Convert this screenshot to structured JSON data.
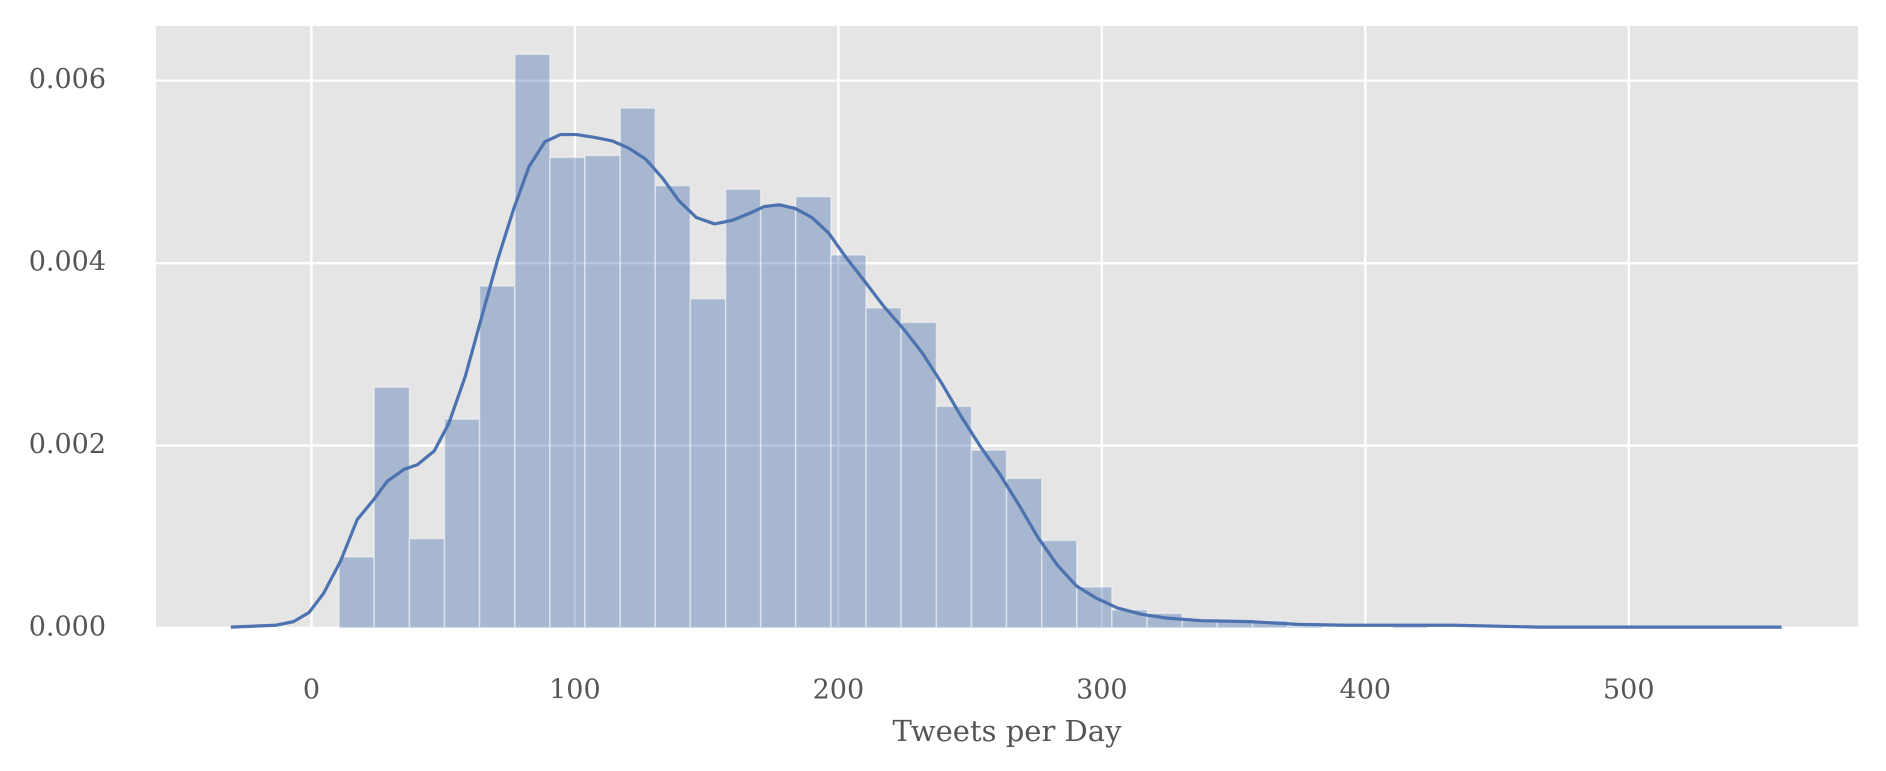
{
  "chart_data": {
    "type": "histogram",
    "xlabel": "Tweets per Day",
    "bins": [
      10.5,
      23.8,
      37.2,
      50.5,
      63.8,
      77.2,
      90.5,
      103.8,
      117.2,
      130.5,
      143.8,
      157.2,
      170.5,
      183.8,
      197.2,
      210.5,
      223.8,
      237.2,
      250.5,
      263.8,
      277.2,
      290.5,
      303.8,
      317.2,
      330.5,
      343.8,
      357.2,
      370.5,
      383.8,
      397.2,
      410.5,
      423.8,
      437.2,
      450.5,
      463.8,
      477.2,
      490.5,
      503.8,
      517.2,
      530.5,
      543.8
    ],
    "values": [
      0.00078,
      0.00264,
      0.00098,
      0.00229,
      0.00375,
      0.00629,
      0.00516,
      0.00518,
      0.0057,
      0.00485,
      0.00361,
      0.00481,
      0.00463,
      0.00473,
      0.00409,
      0.00351,
      0.00335,
      0.00243,
      0.00195,
      0.00164,
      0.00096,
      0.00045,
      0.0002,
      0.00016,
      8e-05,
      7e-05,
      8e-05,
      2e-05,
      0,
      0,
      2e-05,
      0,
      0,
      0,
      0,
      0,
      0,
      0,
      0,
      2e-05
    ],
    "color": "#4c72b0",
    "kde": {
      "color": "#4c72b0",
      "x": [
        -30.6,
        -13.7,
        -6.8,
        -0.9,
        4.6,
        11,
        17.4,
        23.7,
        28.8,
        35.2,
        40.2,
        46.6,
        52.1,
        58.4,
        64.8,
        70.8,
        76.7,
        82.6,
        88.6,
        94.5,
        100.5,
        107.3,
        114.2,
        120.5,
        126.9,
        133.3,
        139.3,
        146.1,
        153,
        159.8,
        165.8,
        171.7,
        177.6,
        183.6,
        190,
        196.3,
        202.7,
        210,
        217.4,
        224.7,
        232,
        239.3,
        246.6,
        253.9,
        261.2,
        268.5,
        275.8,
        283.1,
        290.4,
        297.7,
        305.9,
        315.1,
        324.2,
        337.9,
        356.2,
        374.4,
        392.7,
        433.8,
        465.8,
        558
      ],
      "values": [
        1e-05,
        3e-05,
        7e-05,
        0.00017,
        0.00038,
        0.00073,
        0.00119,
        0.00141,
        0.00161,
        0.00174,
        0.00179,
        0.00194,
        0.00224,
        0.00276,
        0.00343,
        0.00405,
        0.00459,
        0.00506,
        0.00533,
        0.00541,
        0.00541,
        0.00538,
        0.00534,
        0.00526,
        0.00514,
        0.00493,
        0.00469,
        0.0045,
        0.00443,
        0.00447,
        0.00454,
        0.00462,
        0.00464,
        0.0046,
        0.0045,
        0.00433,
        0.00407,
        0.0038,
        0.00352,
        0.00328,
        0.00301,
        0.00268,
        0.00232,
        0.00199,
        0.00169,
        0.00135,
        0.00099,
        0.00069,
        0.00046,
        0.00033,
        0.00022,
        0.00015,
        0.00011,
        8e-05,
        7e-05,
        4e-05,
        3e-05,
        3e-05,
        1e-05,
        1e-05
      ]
    },
    "xlim": [
      -59,
      587
    ],
    "ylim": [
      0,
      0.0066
    ],
    "xticks": [
      0,
      100,
      200,
      300,
      400,
      500
    ],
    "yticks": [
      {
        "value": 0,
        "label": "0.000"
      },
      {
        "value": 0.002,
        "label": "0.002"
      },
      {
        "value": 0.004,
        "label": "0.004"
      },
      {
        "value": 0.006,
        "label": "0.006"
      }
    ],
    "grid": true
  }
}
